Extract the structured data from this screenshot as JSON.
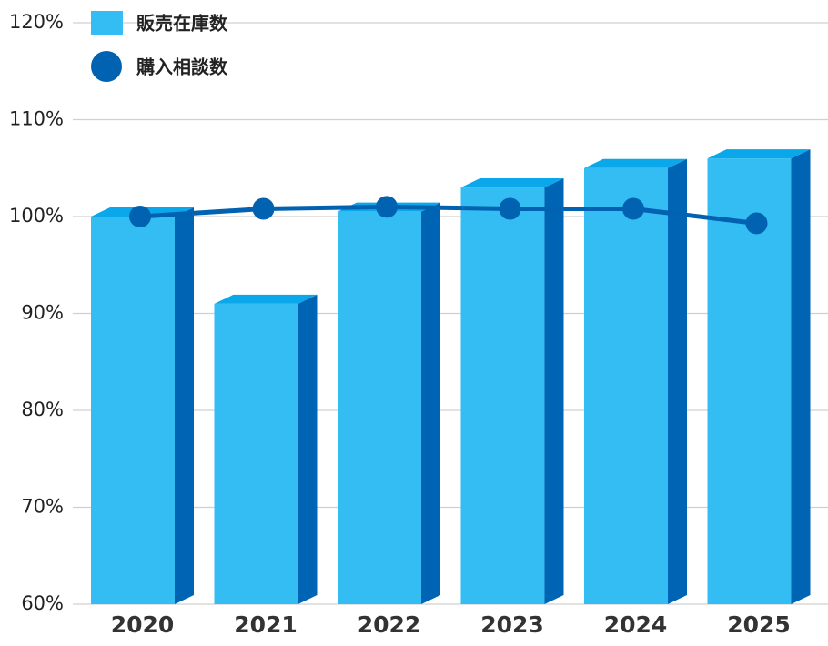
{
  "chart_data": {
    "type": "bar",
    "categories": [
      "2020",
      "2021",
      "2022",
      "2023",
      "2024",
      "2025"
    ],
    "series": [
      {
        "name": "販売在庫数",
        "type": "bar",
        "color": "#33bdf2",
        "values": [
          100,
          91,
          100.5,
          103,
          105,
          106
        ]
      },
      {
        "name": "購入相談数",
        "type": "line",
        "color": "#0062b0",
        "values": [
          100,
          100.8,
          101,
          100.8,
          100.8,
          99.3
        ]
      }
    ],
    "ylim": [
      60,
      120
    ],
    "yticks": [
      {
        "value": 60,
        "label": "60%"
      },
      {
        "value": 70,
        "label": "70%"
      },
      {
        "value": 80,
        "label": "80%"
      },
      {
        "value": 90,
        "label": "90%"
      },
      {
        "value": 100,
        "label": "100%"
      },
      {
        "value": 110,
        "label": "110%"
      },
      {
        "value": 120,
        "label": "120%"
      }
    ],
    "grid": true
  }
}
